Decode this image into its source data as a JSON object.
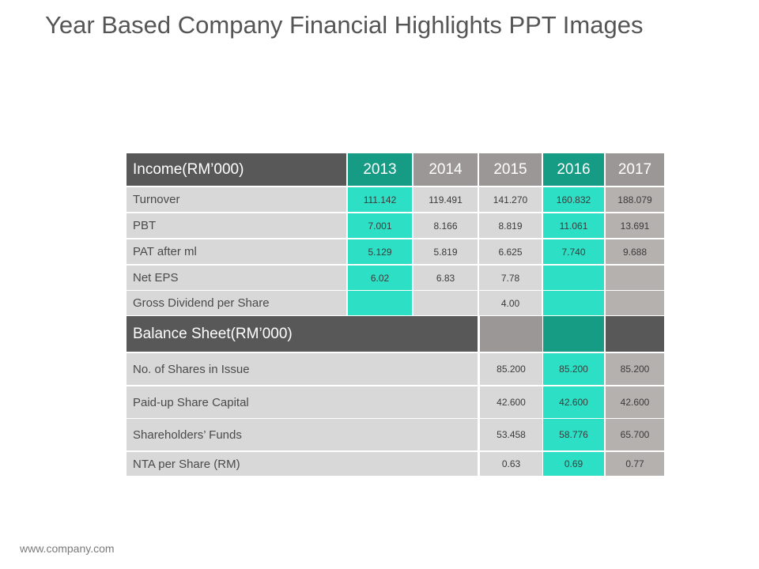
{
  "title": "Year Based Company Financial Highlights PPT Images",
  "footer": "www.company.com",
  "income": {
    "header": "Income(RM’000)",
    "years": [
      "2013",
      "2014",
      "2015",
      "2016",
      "2017"
    ],
    "rows": [
      {
        "label": "Turnover",
        "values": [
          "111.142",
          "119.491",
          "141.270",
          "160.832",
          "188.079"
        ]
      },
      {
        "label": "PBT",
        "values": [
          "7.001",
          "8.166",
          "8.819",
          "11.061",
          "13.691"
        ]
      },
      {
        "label": "PAT after ml",
        "values": [
          "5.129",
          "5.819",
          "6.625",
          "7.740",
          "9.688"
        ]
      },
      {
        "label": "Net EPS",
        "values": [
          "6.02",
          "6.83",
          "7.78",
          "",
          ""
        ]
      },
      {
        "label": "Gross Dividend per Share",
        "values": [
          "",
          "",
          "4.00",
          "",
          ""
        ]
      }
    ]
  },
  "balance": {
    "header": "Balance Sheet(RM’000)",
    "rows": [
      {
        "label": "No. of Shares in Issue",
        "values": [
          "85.200",
          "85.200",
          "85.200"
        ]
      },
      {
        "label": "Paid-up Share Capital",
        "values": [
          "42.600",
          "42.600",
          "42.600"
        ]
      },
      {
        "label": "Shareholders’ Funds",
        "values": [
          "53.458",
          "58.776",
          "65.700"
        ]
      },
      {
        "label": "NTA per Share (RM)",
        "values": [
          "0.63",
          "0.69",
          "0.77"
        ]
      }
    ]
  }
}
